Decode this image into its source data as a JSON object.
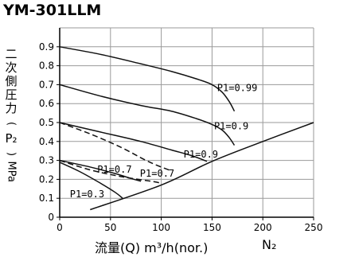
{
  "chart_data": {
    "type": "line",
    "title": "YM-301LLM",
    "xlabel": "流量(Q) m³/h(nor.)",
    "xlabel_extra": "N₂",
    "ylabel_chars": [
      "二",
      "次",
      "側",
      "圧",
      "力",
      "(",
      "P₂",
      ")"
    ],
    "ylabel_unit": "MPa",
    "xlim": [
      0,
      250
    ],
    "ylim": [
      0,
      1.0
    ],
    "x_ticks": [
      0,
      50,
      100,
      150,
      200,
      250
    ],
    "y_ticks": [
      0,
      0.1,
      0.2,
      0.3,
      0.4,
      0.5,
      0.6,
      0.7,
      0.8,
      0.9
    ],
    "y_tick_labels": [
      "0",
      "0.1",
      "0.2",
      "0.3",
      "0.4",
      "0.5",
      "0.6",
      "0.7",
      "0.8",
      "0.9"
    ],
    "grid": true,
    "series": [
      {
        "name": "P1=0.99",
        "style": "solid",
        "points": [
          [
            0,
            0.9
          ],
          [
            40,
            0.86
          ],
          [
            80,
            0.81
          ],
          [
            110,
            0.77
          ],
          [
            135,
            0.73
          ],
          [
            150,
            0.7
          ],
          [
            160,
            0.66
          ],
          [
            167,
            0.61
          ],
          [
            172,
            0.56
          ]
        ]
      },
      {
        "name": "P1=0.9",
        "style": "solid",
        "points": [
          [
            0,
            0.7
          ],
          [
            40,
            0.64
          ],
          [
            80,
            0.59
          ],
          [
            110,
            0.56
          ],
          [
            135,
            0.52
          ],
          [
            150,
            0.49
          ],
          [
            160,
            0.46
          ],
          [
            167,
            0.42
          ],
          [
            172,
            0.38
          ]
        ]
      },
      {
        "name": "P1=0.9",
        "style": "solid",
        "points": [
          [
            0,
            0.5
          ],
          [
            40,
            0.45
          ],
          [
            80,
            0.4
          ],
          [
            110,
            0.355
          ],
          [
            130,
            0.325
          ],
          [
            145,
            0.295
          ]
        ]
      },
      {
        "name": "P1=0.7",
        "style": "dashed",
        "points": [
          [
            0,
            0.5
          ],
          [
            30,
            0.44
          ],
          [
            60,
            0.37
          ],
          [
            85,
            0.3
          ],
          [
            100,
            0.265
          ],
          [
            110,
            0.245
          ]
        ]
      },
      {
        "name": "P1=0.7",
        "style": "solid",
        "points": [
          [
            0,
            0.3
          ],
          [
            30,
            0.265
          ],
          [
            55,
            0.23
          ],
          [
            70,
            0.205
          ],
          [
            80,
            0.19
          ]
        ]
      },
      {
        "name": "",
        "style": "dashed",
        "points": [
          [
            0,
            0.3
          ],
          [
            30,
            0.25
          ],
          [
            60,
            0.215
          ],
          [
            90,
            0.19
          ],
          [
            100,
            0.18
          ]
        ]
      },
      {
        "name": "P1=0.3",
        "style": "solid",
        "points": [
          [
            0,
            0.29
          ],
          [
            20,
            0.24
          ],
          [
            40,
            0.18
          ],
          [
            55,
            0.13
          ],
          [
            62,
            0.1
          ]
        ]
      },
      {
        "name": "",
        "style": "solid",
        "points": [
          [
            30,
            0.04
          ],
          [
            100,
            0.17
          ],
          [
            150,
            0.295
          ],
          [
            200,
            0.4
          ],
          [
            250,
            0.5
          ]
        ]
      }
    ],
    "annotations": [
      {
        "text": "P1=0.99",
        "x": 155,
        "y": 0.665
      },
      {
        "text": "P1=0.9",
        "x": 152,
        "y": 0.465
      },
      {
        "text": "P1=0.9",
        "x": 122,
        "y": 0.315
      },
      {
        "text": "P1=0.7",
        "x": 37,
        "y": 0.235
      },
      {
        "text": "P1=0.7",
        "x": 79,
        "y": 0.215
      },
      {
        "text": "P1=0.3",
        "x": 10,
        "y": 0.105
      }
    ]
  }
}
